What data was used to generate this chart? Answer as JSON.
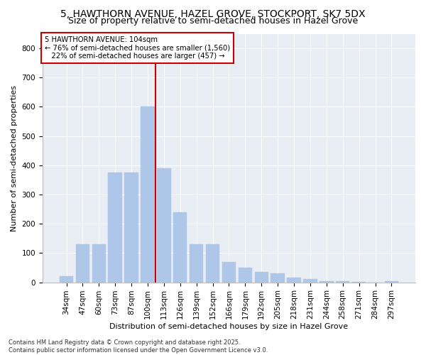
{
  "title": "5, HAWTHORN AVENUE, HAZEL GROVE, STOCKPORT, SK7 5DX",
  "subtitle": "Size of property relative to semi-detached houses in Hazel Grove",
  "xlabel": "Distribution of semi-detached houses by size in Hazel Grove",
  "ylabel": "Number of semi-detached properties",
  "categories": [
    "34sqm",
    "47sqm",
    "60sqm",
    "73sqm",
    "87sqm",
    "100sqm",
    "113sqm",
    "126sqm",
    "139sqm",
    "152sqm",
    "166sqm",
    "179sqm",
    "192sqm",
    "205sqm",
    "218sqm",
    "231sqm",
    "244sqm",
    "258sqm",
    "271sqm",
    "284sqm",
    "297sqm"
  ],
  "values": [
    20,
    130,
    130,
    375,
    375,
    600,
    390,
    240,
    130,
    130,
    70,
    50,
    35,
    30,
    15,
    10,
    5,
    5,
    2,
    0,
    3
  ],
  "bar_color": "#aec6e8",
  "bar_edge_color": "#aec6e8",
  "vline_index": 5,
  "vline_color": "#cc0000",
  "annotation_line1": "5 HAWTHORN AVENUE: 104sqm",
  "annotation_line2": "← 76% of semi-detached houses are smaller (1,560)",
  "annotation_line3": "   22% of semi-detached houses are larger (457) →",
  "annotation_box_color": "#cc0000",
  "ylim": [
    0,
    850
  ],
  "yticks": [
    0,
    100,
    200,
    300,
    400,
    500,
    600,
    700,
    800
  ],
  "background_color": "#e8eef4",
  "footer": "Contains HM Land Registry data © Crown copyright and database right 2025.\nContains public sector information licensed under the Open Government Licence v3.0.",
  "title_fontsize": 10,
  "subtitle_fontsize": 9,
  "xlabel_fontsize": 8,
  "ylabel_fontsize": 8,
  "tick_fontsize": 7.5,
  "footer_fontsize": 6
}
